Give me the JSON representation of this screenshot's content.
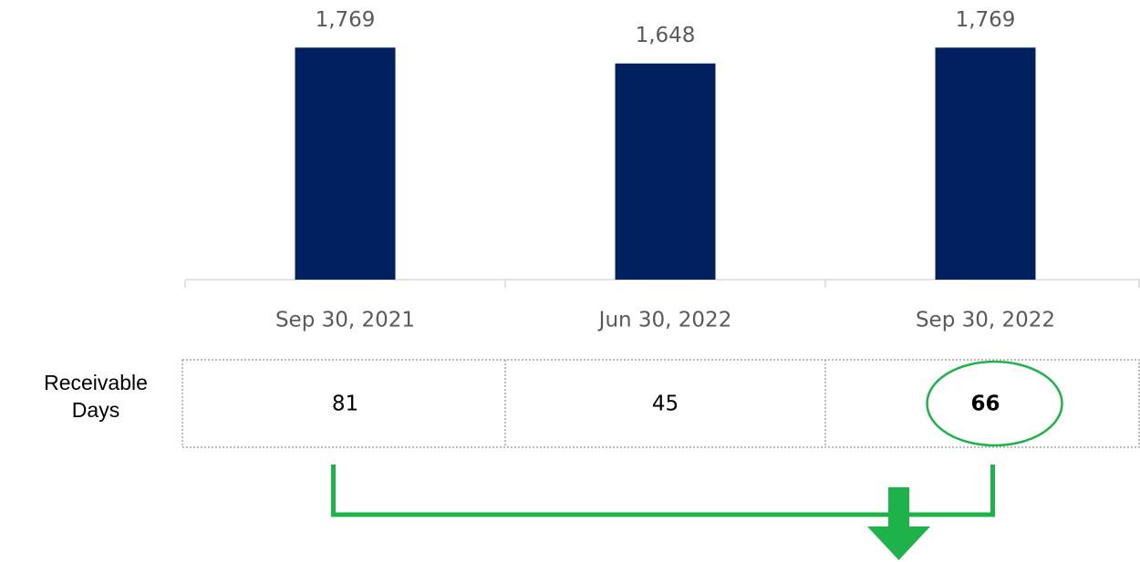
{
  "chart_data": {
    "type": "bar",
    "categories": [
      "Sep 30, 2021",
      "Jun 30, 2022",
      "Sep 30, 2022"
    ],
    "values": [
      1769,
      1648,
      1769
    ],
    "value_labels": [
      "1,769",
      "1,648",
      "1,769"
    ],
    "color": "#002060",
    "ylim": [
      0,
      2000
    ]
  },
  "table": {
    "row_label": "Receivable Days",
    "values": [
      81,
      45,
      66
    ],
    "highlight_color": "#1db34a"
  }
}
